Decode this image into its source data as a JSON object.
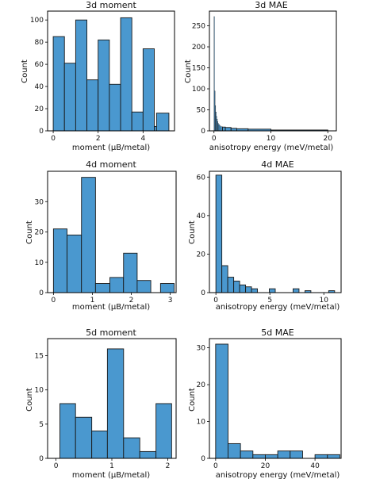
{
  "figure": {
    "panels": [
      {
        "id": "p1",
        "title": "3d moment",
        "xlabel": "moment (μB/metal)",
        "ylabel": "Count"
      },
      {
        "id": "p2",
        "title": "3d MAE",
        "xlabel": "anisotropy energy (meV/metal)",
        "ylabel": "Count"
      },
      {
        "id": "p3",
        "title": "4d moment",
        "xlabel": "moment (μB/metal)",
        "ylabel": "Count"
      },
      {
        "id": "p4",
        "title": "4d MAE",
        "xlabel": "anisotropy energy (meV/metal)",
        "ylabel": "Count"
      },
      {
        "id": "p5",
        "title": "5d moment",
        "xlabel": "moment (μB/metal)",
        "ylabel": "Count"
      },
      {
        "id": "p6",
        "title": "5d MAE",
        "xlabel": "anisotropy energy (meV/metal)",
        "ylabel": "Count"
      }
    ]
  },
  "chart_data": [
    {
      "type": "bar",
      "title": "3d moment",
      "xlabel": "moment (μB/metal)",
      "ylabel": "Count",
      "xlim": [
        -0.25,
        5.4
      ],
      "ylim": [
        0,
        108
      ],
      "xticks": [
        0,
        2,
        4
      ],
      "yticks": [
        0,
        20,
        40,
        60,
        80,
        100
      ],
      "bins": [
        [
          0,
          0.5
        ],
        [
          0.5,
          1
        ],
        [
          1,
          1.5
        ],
        [
          1.5,
          2
        ],
        [
          2,
          2.5
        ],
        [
          2.5,
          3
        ],
        [
          3,
          3.5
        ],
        [
          3.5,
          4
        ],
        [
          4,
          4.5
        ],
        [
          4.5,
          5
        ]
      ],
      "values": [
        85,
        61,
        100,
        46,
        82,
        42,
        102,
        17,
        74,
        4
      ],
      "extra_bins": [
        [
          [
            4.6,
            5.15
          ],
          16
        ]
      ],
      "color": "#4a98cf"
    },
    {
      "type": "bar",
      "title": "3d MAE",
      "xlabel": "anisotropy energy (meV/metal)",
      "ylabel": "Count",
      "xlim": [
        -0.8,
        21.5
      ],
      "ylim": [
        0,
        285
      ],
      "xticks": [
        0,
        10,
        20
      ],
      "yticks": [
        0,
        50,
        100,
        150,
        200,
        250
      ],
      "bins": [
        [
          0,
          0.1
        ],
        [
          0.1,
          0.2
        ],
        [
          0.2,
          0.3
        ],
        [
          0.3,
          0.4
        ],
        [
          0.4,
          0.5
        ],
        [
          0.5,
          0.6
        ],
        [
          0.6,
          0.7
        ],
        [
          0.7,
          0.8
        ],
        [
          0.8,
          1
        ],
        [
          1,
          1.2
        ],
        [
          1.2,
          1.5
        ],
        [
          1.5,
          2
        ],
        [
          2,
          3
        ],
        [
          3,
          4
        ],
        [
          4,
          6
        ],
        [
          6,
          10
        ],
        [
          10,
          20
        ]
      ],
      "values": [
        272,
        95,
        60,
        45,
        35,
        28,
        22,
        18,
        15,
        12,
        10,
        9,
        8,
        6,
        5,
        4,
        2
      ],
      "color": "#4a98cf"
    },
    {
      "type": "bar",
      "title": "4d moment",
      "xlabel": "moment (μB/metal)",
      "ylabel": "Count",
      "xlim": [
        -0.15,
        3.15
      ],
      "ylim": [
        0,
        40
      ],
      "xticks": [
        0,
        1,
        2,
        3
      ],
      "yticks": [
        0,
        10,
        20,
        30
      ],
      "bins": [
        [
          0,
          0.35
        ],
        [
          0.35,
          0.72
        ],
        [
          0.72,
          1.08
        ],
        [
          1.08,
          1.45
        ],
        [
          1.45,
          1.8
        ],
        [
          1.8,
          2.15
        ],
        [
          2.15,
          2.5
        ],
        [
          2.5,
          2.85
        ]
      ],
      "values": [
        21,
        19,
        38,
        3,
        5,
        13,
        4,
        0
      ],
      "extra_bins": [
        [
          [
            2.75,
            3.1
          ],
          3
        ]
      ],
      "color": "#4a98cf"
    },
    {
      "type": "bar",
      "title": "4d MAE",
      "xlabel": "anisotropy energy (meV/metal)",
      "ylabel": "Count",
      "xlim": [
        -0.6,
        11.6
      ],
      "ylim": [
        0,
        63
      ],
      "xticks": [
        0,
        5,
        10
      ],
      "yticks": [
        0,
        20,
        40,
        60
      ],
      "bins": [
        [
          0,
          0.55
        ],
        [
          0.55,
          1.1
        ],
        [
          1.1,
          1.65
        ],
        [
          1.65,
          2.2
        ],
        [
          2.2,
          2.75
        ],
        [
          2.75,
          3.3
        ],
        [
          3.3,
          3.85
        ],
        [
          4.95,
          5.5
        ],
        [
          7.15,
          7.7
        ],
        [
          8.25,
          8.8
        ],
        [
          10.45,
          11
        ]
      ],
      "values": [
        61,
        14,
        8,
        6,
        4,
        3,
        2,
        2,
        2,
        1,
        1
      ],
      "color": "#4a98cf"
    },
    {
      "type": "bar",
      "title": "5d moment",
      "xlabel": "moment (μB/metal)",
      "ylabel": "Count",
      "xlim": [
        -0.15,
        2.15
      ],
      "ylim": [
        0,
        17.5
      ],
      "xticks": [
        0,
        1,
        2
      ],
      "yticks": [
        0,
        5,
        10,
        15
      ],
      "bins": [
        [
          0.07,
          0.35
        ],
        [
          0.35,
          0.64
        ],
        [
          0.64,
          0.92
        ],
        [
          0.92,
          1.21
        ],
        [
          1.21,
          1.5
        ],
        [
          1.5,
          1.79
        ],
        [
          1.79,
          2.07
        ]
      ],
      "values": [
        8,
        6,
        4,
        16,
        3,
        1,
        8
      ],
      "color": "#4a98cf"
    },
    {
      "type": "bar",
      "title": "5d MAE",
      "xlabel": "anisotropy energy (meV/metal)",
      "ylabel": "Count",
      "xlim": [
        -2.5,
        50.5
      ],
      "ylim": [
        0,
        32.5
      ],
      "xticks": [
        0,
        20,
        40
      ],
      "yticks": [
        0,
        10,
        20,
        30
      ],
      "bins": [
        [
          0,
          5
        ],
        [
          5,
          10
        ],
        [
          10,
          15
        ],
        [
          15,
          20
        ],
        [
          20,
          25
        ],
        [
          25,
          30
        ],
        [
          30,
          35
        ],
        [
          40,
          45
        ],
        [
          45,
          50
        ]
      ],
      "values": [
        31,
        4,
        2,
        1,
        1,
        2,
        2,
        1,
        1
      ],
      "color": "#4a98cf"
    }
  ]
}
